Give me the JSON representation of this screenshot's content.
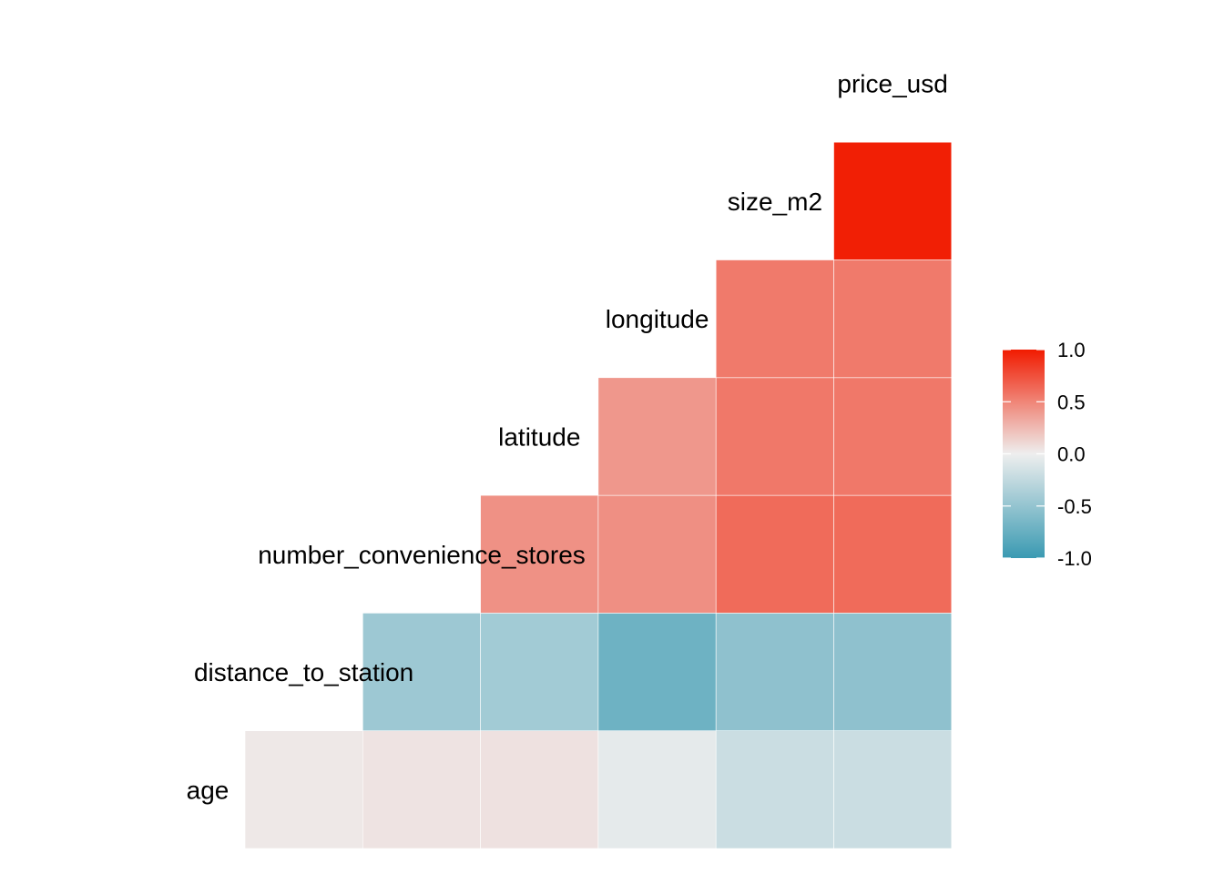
{
  "chart_data": {
    "type": "heatmap",
    "title": "",
    "variables": [
      "age",
      "distance_to_station",
      "number_convenience_stores",
      "latitude",
      "longitude",
      "size_m2",
      "price_usd"
    ],
    "cells": [
      {
        "row": "distance_to_station",
        "col": "age",
        "value": 0.03
      },
      {
        "row": "number_convenience_stores",
        "col": "age",
        "value": 0.05
      },
      {
        "row": "number_convenience_stores",
        "col": "distance_to_station",
        "value": -0.45
      },
      {
        "row": "latitude",
        "col": "age",
        "value": 0.06
      },
      {
        "row": "latitude",
        "col": "distance_to_station",
        "value": -0.42
      },
      {
        "row": "latitude",
        "col": "number_convenience_stores",
        "value": 0.44
      },
      {
        "row": "longitude",
        "col": "age",
        "value": -0.05
      },
      {
        "row": "longitude",
        "col": "distance_to_station",
        "value": -0.71
      },
      {
        "row": "longitude",
        "col": "number_convenience_stores",
        "value": 0.45
      },
      {
        "row": "longitude",
        "col": "latitude",
        "value": 0.41
      },
      {
        "row": "size_m2",
        "col": "age",
        "value": -0.2
      },
      {
        "row": "size_m2",
        "col": "distance_to_station",
        "value": -0.53
      },
      {
        "row": "size_m2",
        "col": "number_convenience_stores",
        "value": 0.62
      },
      {
        "row": "size_m2",
        "col": "latitude",
        "value": 0.56
      },
      {
        "row": "size_m2",
        "col": "longitude",
        "value": 0.55
      },
      {
        "row": "price_usd",
        "col": "age",
        "value": -0.2
      },
      {
        "row": "price_usd",
        "col": "distance_to_station",
        "value": -0.53
      },
      {
        "row": "price_usd",
        "col": "number_convenience_stores",
        "value": 0.62
      },
      {
        "row": "price_usd",
        "col": "latitude",
        "value": 0.56
      },
      {
        "row": "price_usd",
        "col": "longitude",
        "value": 0.55
      },
      {
        "row": "price_usd",
        "col": "size_m2",
        "value": 0.98
      }
    ],
    "legend": {
      "position": "right",
      "ticks": [
        "1.0",
        "0.5",
        "0.0",
        "-0.5",
        "-1.0"
      ],
      "limits": [
        -1,
        1
      ],
      "low_color": "#3A9AB2",
      "mid_color": "#EEEEEE",
      "high_color": "#F11B00"
    }
  }
}
